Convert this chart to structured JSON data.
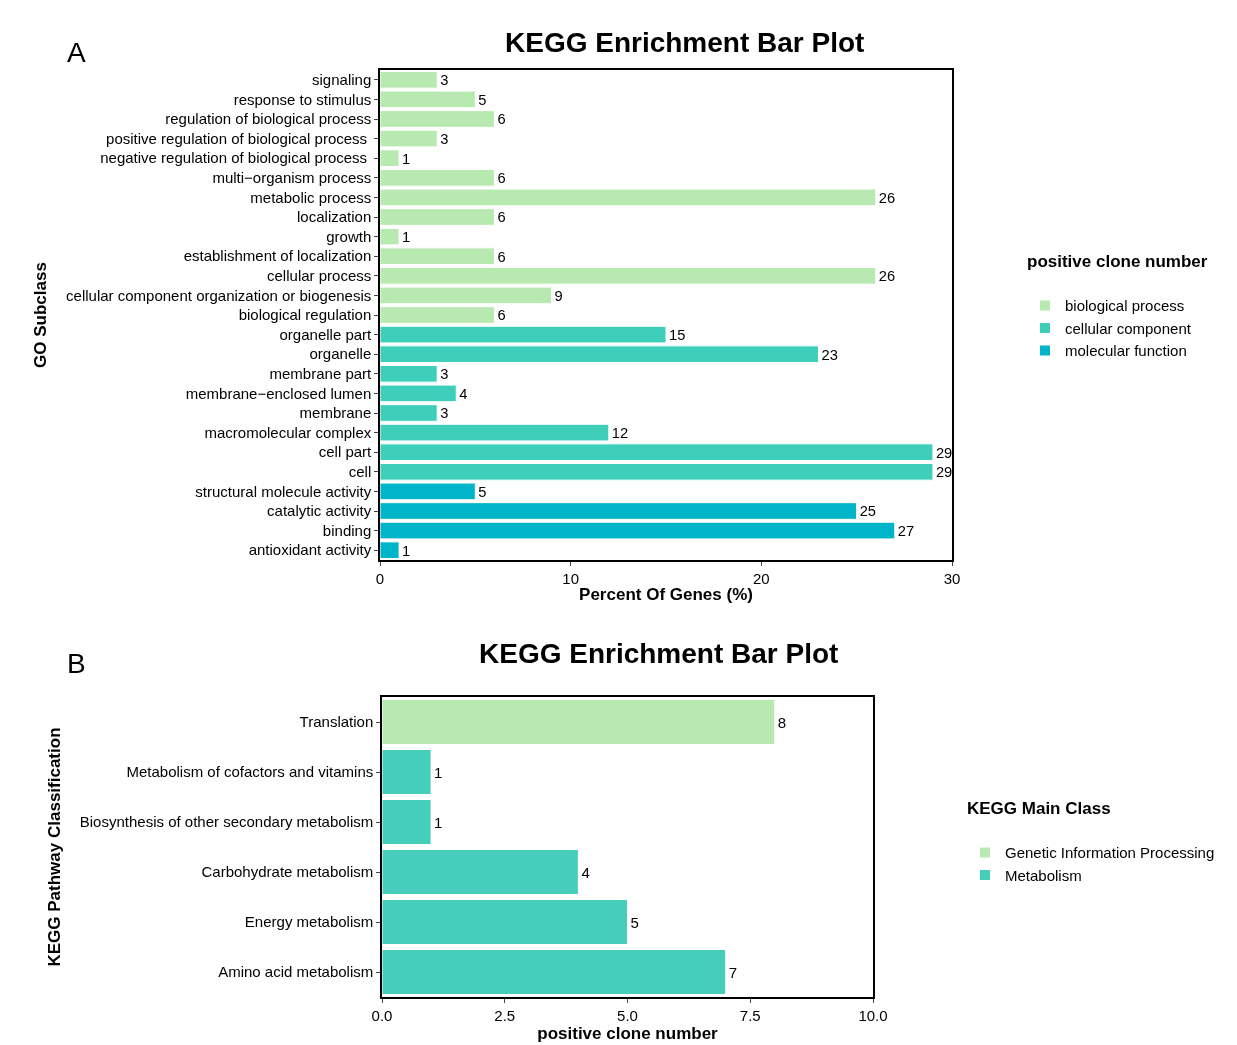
{
  "chart_data": [
    {
      "type": "bar",
      "orientation": "horizontal",
      "title": "KEGG Enrichment Bar Plot",
      "xlabel": "Percent Of Genes (%)",
      "ylabel": "GO Subclass",
      "legend_title": "positive clone number",
      "legend": "right",
      "data_labels": true,
      "annotations": [
        "A"
      ],
      "categories": [
        "signaling",
        "response to stimulus",
        "regulation of biological process",
        "positive regulation of biological process ",
        "negative regulation of biological process ",
        "multi−organism process",
        "metabolic process",
        "localization",
        "growth",
        "establishment of localization",
        "cellular process",
        "cellular component organization or biogenesis",
        "biological regulation",
        "organelle part",
        "organelle",
        "membrane part",
        "membrane−enclosed lumen",
        "membrane",
        "macromolecular complex",
        "cell part",
        "cell",
        "structural molecule activity",
        "catalytic activity",
        "binding",
        "antioxidant activity"
      ],
      "xlim": [
        0,
        30
      ],
      "xticks": [
        0,
        10,
        20,
        30
      ],
      "series": [
        {
          "name": "biological process",
          "color": "#b8e9b0",
          "values": [
            3,
            5,
            6,
            3,
            1,
            6,
            26,
            6,
            1,
            6,
            26,
            9,
            6,
            null,
            null,
            null,
            null,
            null,
            null,
            null,
            null,
            null,
            null,
            null,
            null
          ]
        },
        {
          "name": "cellular component",
          "color": "#3ecfbb",
          "values": [
            null,
            null,
            null,
            null,
            null,
            null,
            null,
            null,
            null,
            null,
            null,
            null,
            null,
            15,
            23,
            3,
            4,
            3,
            12,
            29,
            29,
            null,
            null,
            null,
            null
          ]
        },
        {
          "name": "molecular function",
          "color": "#00b5c9",
          "values": [
            null,
            null,
            null,
            null,
            null,
            null,
            null,
            null,
            null,
            null,
            null,
            null,
            null,
            null,
            null,
            null,
            null,
            null,
            null,
            null,
            null,
            5,
            25,
            27,
            1
          ]
        }
      ]
    },
    {
      "type": "bar",
      "orientation": "horizontal",
      "title": "KEGG Enrichment Bar Plot",
      "xlabel": "positive clone number",
      "ylabel": "KEGG Pathway Classification",
      "legend_title": "KEGG Main Class",
      "legend": "right",
      "data_labels": true,
      "annotations": [
        "B"
      ],
      "categories": [
        "Translation",
        "Metabolism of cofactors and vitamins",
        "Biosynthesis of other secondary metabolism",
        "Carbohydrate metabolism",
        "Energy metabolism",
        "Amino acid metabolism"
      ],
      "xlim": [
        0,
        10
      ],
      "xticks": [
        {
          "value": 0,
          "label": "0.0"
        },
        {
          "value": 2.5,
          "label": "2.5"
        },
        {
          "value": 5,
          "label": "5.0"
        },
        {
          "value": 7.5,
          "label": "7.5"
        },
        {
          "value": 10,
          "label": "10.0"
        }
      ],
      "series": [
        {
          "name": "Genetic Information Processing",
          "color": "#b8e9b0",
          "values": [
            8,
            null,
            null,
            null,
            null,
            null
          ]
        },
        {
          "name": "Metabolism",
          "color": "#45cfbb",
          "values": [
            null,
            1,
            1,
            4,
            5,
            7
          ]
        }
      ]
    }
  ]
}
